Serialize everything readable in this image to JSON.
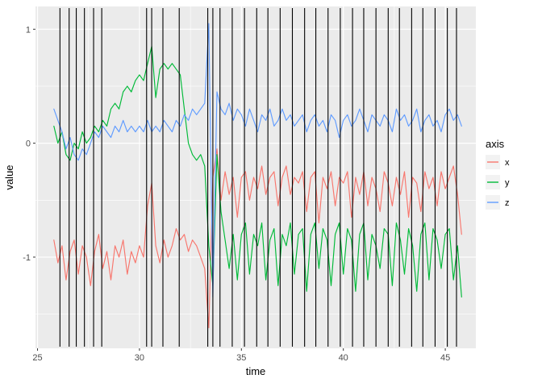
{
  "chart_data": {
    "type": "line",
    "title": "",
    "xlabel": "time",
    "ylabel": "value",
    "legend_title": "axis",
    "legend_position": "right",
    "panel_background": "#EBEBEB",
    "grid_major_color": "#FFFFFF",
    "grid_minor_color": "#FFFFFF",
    "axis_text_color": "#4D4D4D",
    "xlim": [
      24.9,
      46.5
    ],
    "ylim": [
      -1.8,
      1.2
    ],
    "x_ticks": [
      25,
      30,
      35,
      40,
      45
    ],
    "y_ticks": [
      -1,
      0,
      1
    ],
    "x_minor_ticks": [
      27.5,
      32.5,
      37.5,
      42.5
    ],
    "y_minor_ticks": [
      -1.5,
      -0.5,
      0.5
    ],
    "x_start": 25.8,
    "x_step": 0.2,
    "vline_color": "#000000",
    "vlines": [
      26.1,
      26.55,
      26.9,
      27.3,
      27.75,
      28.15,
      30.35,
      30.6,
      31.15,
      31.95,
      33.35,
      33.6,
      33.95,
      34.55,
      35.15,
      35.75,
      36.3,
      36.9,
      37.5,
      38.1,
      38.65,
      39.25,
      39.85,
      40.45,
      41.0,
      41.6,
      42.2,
      42.75,
      43.35,
      43.9,
      44.5,
      45.1,
      45.55
    ],
    "series": [
      {
        "name": "x",
        "color": "#F8766D",
        "values": [
          -0.85,
          -1.05,
          -0.9,
          -1.2,
          -0.95,
          -0.85,
          -1.15,
          -0.9,
          -1.0,
          -1.25,
          -0.95,
          -0.8,
          -1.1,
          -0.95,
          -1.2,
          -0.9,
          -1.0,
          -0.85,
          -1.15,
          -0.95,
          -1.05,
          -0.9,
          -1.0,
          -0.55,
          -0.35,
          -0.9,
          -1.05,
          -0.85,
          -1.0,
          -0.9,
          -0.75,
          -0.85,
          -0.8,
          -0.95,
          -0.85,
          -0.9,
          -1.0,
          -1.1,
          -1.62,
          -0.3,
          -0.05,
          -0.5,
          -0.25,
          -0.45,
          -0.3,
          -0.65,
          -0.3,
          -0.25,
          -0.5,
          -0.3,
          -0.4,
          -0.2,
          -0.45,
          -0.3,
          -0.25,
          -0.55,
          -0.3,
          -0.2,
          -0.45,
          -0.3,
          -0.35,
          -0.25,
          -0.6,
          -0.3,
          -0.25,
          -0.7,
          -0.3,
          -0.4,
          -0.25,
          -0.55,
          -0.3,
          -0.35,
          -0.25,
          -0.65,
          -0.3,
          -0.45,
          -0.25,
          -0.55,
          -0.3,
          -0.4,
          -0.6,
          -0.25,
          -0.35,
          -0.55,
          -0.3,
          -0.45,
          -0.25,
          -0.65,
          -0.3,
          -0.35,
          -0.6,
          -0.25,
          -0.4,
          -0.3,
          -0.55,
          -0.25,
          -0.4,
          -0.3,
          -0.2,
          -0.45,
          -0.8
        ]
      },
      {
        "name": "y",
        "color": "#00BA38",
        "values": [
          0.15,
          0.0,
          0.1,
          -0.1,
          -0.15,
          0.0,
          -0.05,
          0.1,
          0.0,
          0.05,
          0.15,
          0.1,
          0.2,
          0.15,
          0.3,
          0.35,
          0.3,
          0.45,
          0.5,
          0.45,
          0.55,
          0.6,
          0.55,
          0.7,
          0.85,
          0.4,
          0.65,
          0.7,
          0.65,
          0.7,
          0.65,
          0.6,
          0.3,
          0.0,
          -0.1,
          -0.15,
          -0.1,
          -0.2,
          -0.9,
          -1.25,
          -0.1,
          -0.6,
          -0.85,
          -1.1,
          -0.8,
          -1.2,
          -0.8,
          -0.7,
          -1.15,
          -0.8,
          -0.9,
          -0.7,
          -1.2,
          -0.85,
          -0.75,
          -1.25,
          -0.8,
          -0.9,
          -0.7,
          -1.15,
          -0.8,
          -0.75,
          -1.3,
          -0.8,
          -0.7,
          -1.1,
          -0.75,
          -0.85,
          -1.25,
          -0.8,
          -0.7,
          -1.15,
          -0.75,
          -0.85,
          -1.3,
          -0.8,
          -0.7,
          -1.2,
          -0.8,
          -0.9,
          -1.1,
          -0.75,
          -0.8,
          -1.25,
          -0.7,
          -0.85,
          -1.15,
          -0.75,
          -0.9,
          -1.3,
          -0.8,
          -0.7,
          -1.2,
          -0.75,
          -0.85,
          -1.1,
          -0.8,
          -0.75,
          -1.2,
          -0.9,
          -1.35
        ]
      },
      {
        "name": "z",
        "color": "#619CFF",
        "values": [
          0.3,
          0.2,
          0.1,
          -0.05,
          0.05,
          -0.1,
          -0.15,
          -0.05,
          -0.1,
          0.0,
          0.1,
          0.05,
          0.15,
          0.1,
          0.05,
          0.15,
          0.1,
          0.2,
          0.1,
          0.15,
          0.1,
          0.15,
          0.1,
          0.2,
          0.1,
          0.15,
          0.1,
          0.2,
          0.15,
          0.1,
          0.2,
          0.15,
          0.25,
          0.2,
          0.3,
          0.25,
          0.3,
          0.35,
          1.05,
          -1.35,
          0.45,
          0.3,
          0.25,
          0.35,
          0.2,
          0.3,
          0.25,
          0.15,
          0.3,
          0.2,
          0.1,
          0.25,
          0.2,
          0.3,
          0.15,
          0.2,
          0.3,
          0.2,
          0.25,
          0.15,
          0.2,
          0.25,
          0.1,
          0.2,
          0.25,
          0.15,
          0.2,
          0.1,
          0.25,
          0.2,
          0.05,
          0.2,
          0.25,
          0.15,
          0.2,
          0.3,
          0.2,
          0.1,
          0.25,
          0.2,
          0.15,
          0.25,
          0.2,
          0.1,
          0.3,
          0.2,
          0.25,
          0.15,
          0.2,
          0.3,
          0.1,
          0.2,
          0.25,
          0.15,
          0.2,
          0.1,
          0.25,
          0.3,
          0.2,
          0.25,
          0.15
        ]
      }
    ]
  }
}
